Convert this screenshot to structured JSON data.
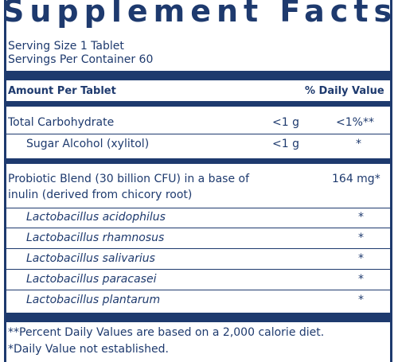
{
  "title": "Supplement Facts",
  "serving_size": "Serving Size 1 Tablet",
  "servings_per_container": "Servings Per Container 60",
  "header": {
    "amount_label": "Amount Per Tablet",
    "dv_label": "% Daily Value"
  },
  "rows": [
    {
      "name": "Total Carbohydrate",
      "amount": "<1 g",
      "dv": "<1%**"
    },
    {
      "name": "Sugar Alcohol (xylitol)",
      "amount": "<1 g",
      "dv": "*"
    }
  ],
  "blend": {
    "line1": "Probiotic Blend (30 billion CFU) in a base of",
    "line2": "inulin (derived from chicory root)",
    "amount": "164 mg*",
    "strains": [
      {
        "name": "Lactobacillus acidophilus",
        "dv": "*"
      },
      {
        "name": "Lactobacillus rhamnosus",
        "dv": "*"
      },
      {
        "name": "Lactobacillus salivarius",
        "dv": "*"
      },
      {
        "name": "Lactobacillus paracasei",
        "dv": "*"
      },
      {
        "name": "Lactobacillus plantarum",
        "dv": "*"
      }
    ]
  },
  "footnotes": {
    "percent_dv": "**Percent Daily Values are based on a 2,000 calorie diet.",
    "dv_not_established": "*Daily Value not established."
  }
}
